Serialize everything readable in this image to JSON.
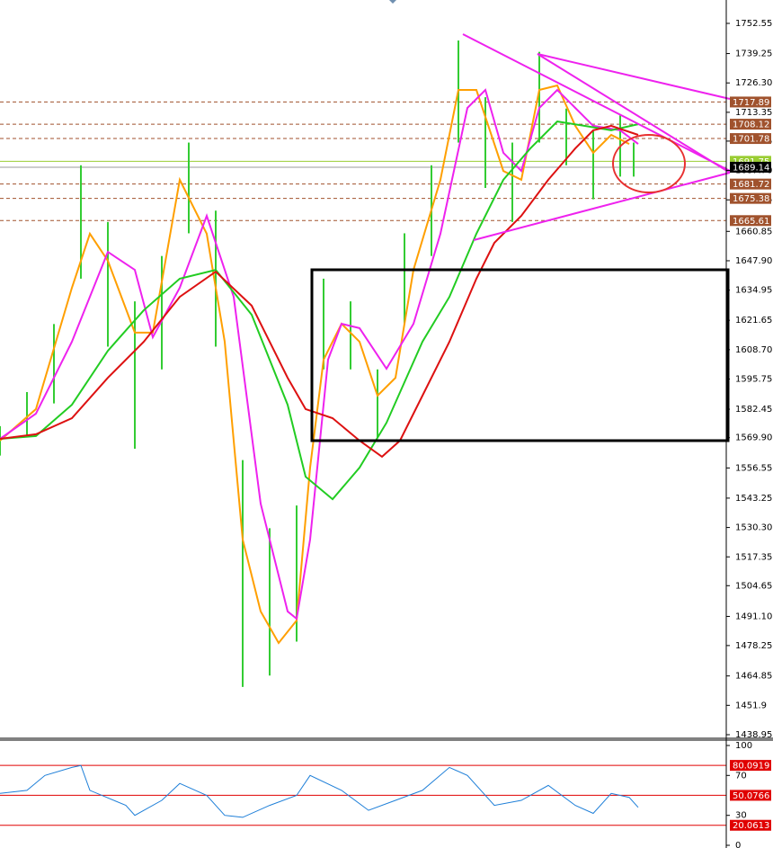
{
  "chart_data": [
    {
      "type": "line",
      "xlim": [
        0,
        808
      ],
      "ylim": [
        1437.76,
        1762.86
      ],
      "yticks": [
        1752.55,
        1739.25,
        {
          "value": 1726.3,
          "label": "1726.30"
        },
        1713.35,
        1700.65,
        {
          "value": 1687.7,
          "label": "1687.70"
        },
        1674.75,
        1660.85,
        {
          "value": 1647.9,
          "label": "1647.90"
        },
        1634.95,
        1621.65,
        {
          "value": 1608.7,
          "label": "1608.70"
        },
        1595.75,
        1582.45,
        {
          "value": 1569.9,
          "label": "1569.90"
        },
        1556.55,
        1543.25,
        {
          "value": 1530.3,
          "label": "1530.30"
        },
        1517.35,
        1504.65,
        {
          "value": 1491.1,
          "label": "1491.10"
        },
        1478.25,
        1464.85,
        1451.9,
        1438.95
      ],
      "levels": [
        {
          "value": 1717.89,
          "color": "#a0522d"
        },
        {
          "value": 1708.12,
          "color": "#a0522d"
        },
        {
          "value": 1701.78,
          "color": "#a0522d"
        },
        {
          "value": 1691.75,
          "color": "#9acd32"
        },
        {
          "value": 1689.14,
          "color": "#000000"
        },
        {
          "value": 1681.72,
          "color": "#a0522d"
        },
        {
          "value": 1675.38,
          "color": "#a0522d"
        },
        {
          "value": 1665.61,
          "color": "#a0522d"
        }
      ],
      "bars": {
        "color": "#33cc33",
        "x": [
          0,
          30,
          60,
          90,
          120,
          150,
          180,
          210,
          240,
          270,
          300,
          330,
          360,
          390,
          420,
          450,
          480,
          510,
          540,
          570,
          600,
          630,
          660,
          690,
          705
        ],
        "high": [
          1575,
          1590,
          1620,
          1690,
          1665,
          1630,
          1650,
          1700,
          1670,
          1560,
          1530,
          1540,
          1640,
          1630,
          1600,
          1660,
          1690,
          1745,
          1720,
          1700,
          1740,
          1715,
          1705,
          1712,
          1700
        ],
        "low": [
          1562,
          1570,
          1585,
          1640,
          1610,
          1565,
          1600,
          1660,
          1610,
          1460,
          1465,
          1480,
          1600,
          1600,
          1570,
          1620,
          1650,
          1700,
          1680,
          1665,
          1700,
          1690,
          1675,
          1685,
          1685
        ]
      },
      "series": [
        {
          "color": "#ff9f00",
          "x": [
            0,
            40,
            80,
            100,
            120,
            150,
            170,
            200,
            230,
            250,
            270,
            290,
            310,
            330,
            345,
            360,
            380,
            400,
            420,
            440,
            460,
            490,
            510,
            530,
            560,
            580,
            600,
            620,
            640,
            660,
            680,
            700
          ],
          "values": [
            1568.6,
            1582.5,
            1636.0,
            1659.8,
            1647.9,
            1616.2,
            1616.2,
            1683.6,
            1659.8,
            1612.2,
            1525.0,
            1493.3,
            1479.4,
            1489.3,
            1556.7,
            1604.3,
            1620.1,
            1612.2,
            1588.4,
            1596.3,
            1643.9,
            1683.6,
            1723.2,
            1723.2,
            1687.5,
            1683.6,
            1723.2,
            1725.2,
            1707.4,
            1695.5,
            1703.4,
            1699.4
          ]
        },
        {
          "color": "#ee22ee",
          "x": [
            0,
            40,
            80,
            120,
            150,
            170,
            200,
            230,
            260,
            290,
            320,
            330,
            345,
            365,
            380,
            400,
            430,
            460,
            490,
            520,
            540,
            560,
            580,
            600,
            620,
            640,
            660,
            690,
            710
          ],
          "values": [
            1569.4,
            1580.5,
            1612.2,
            1651.8,
            1643.9,
            1614.2,
            1636.0,
            1667.7,
            1632.0,
            1540.8,
            1493.3,
            1490.1,
            1525.0,
            1604.3,
            1620.1,
            1618.2,
            1600.3,
            1620.1,
            1659.8,
            1715.3,
            1723.2,
            1695.5,
            1687.5,
            1715.3,
            1723.2,
            1715.3,
            1707.4,
            1705.4,
            1699.4
          ]
        },
        {
          "color": "#22cc22",
          "x": [
            0,
            40,
            80,
            120,
            160,
            200,
            240,
            280,
            320,
            340,
            370,
            400,
            430,
            470,
            500,
            530,
            560,
            590,
            620,
            650,
            680,
            710
          ],
          "values": [
            1569.4,
            1570.6,
            1584.4,
            1608.2,
            1626.1,
            1640.0,
            1643.9,
            1624.1,
            1584.4,
            1552.7,
            1542.8,
            1556.7,
            1576.5,
            1612.2,
            1632.0,
            1659.8,
            1683.6,
            1697.4,
            1709.3,
            1707.4,
            1705.4,
            1708.1
          ]
        },
        {
          "color": "#dd1111",
          "x": [
            0,
            40,
            80,
            120,
            160,
            200,
            240,
            280,
            320,
            340,
            370,
            400,
            425,
            445,
            470,
            500,
            530,
            550,
            580,
            610,
            640,
            660,
            680,
            710
          ],
          "values": [
            1569.4,
            1571.4,
            1578.5,
            1596.3,
            1612.2,
            1632.0,
            1643.1,
            1628.1,
            1596.3,
            1582.5,
            1578.5,
            1568.6,
            1561.5,
            1568.6,
            1588.4,
            1612.2,
            1640.0,
            1655.8,
            1667.7,
            1683.6,
            1697.4,
            1705.4,
            1707.4,
            1703.4
          ]
        }
      ]
    },
    {
      "type": "line",
      "xlim": [
        0,
        808
      ],
      "ylim": [
        -2.7,
        106.3
      ],
      "yticks": [
        100,
        70,
        30,
        0
      ],
      "levels": [
        {
          "value": 80.0919,
          "color": "#e00000"
        },
        {
          "value": 50.0766,
          "color": "#e00000"
        },
        {
          "value": 20.0613,
          "color": "#e00000"
        }
      ],
      "series": [
        {
          "color": "#1e7fd8",
          "x": [
            0,
            30,
            50,
            80,
            90,
            100,
            140,
            150,
            180,
            200,
            230,
            250,
            270,
            300,
            330,
            345,
            380,
            410,
            440,
            470,
            500,
            520,
            550,
            580,
            610,
            640,
            660,
            680,
            700,
            710
          ],
          "values": [
            52,
            55,
            70,
            78,
            80,
            55,
            40,
            30,
            45,
            62,
            50,
            30,
            28,
            40,
            50,
            70,
            55,
            35,
            45,
            55,
            78,
            70,
            40,
            45,
            60,
            40,
            32,
            52,
            48,
            38
          ]
        }
      ]
    }
  ]
}
